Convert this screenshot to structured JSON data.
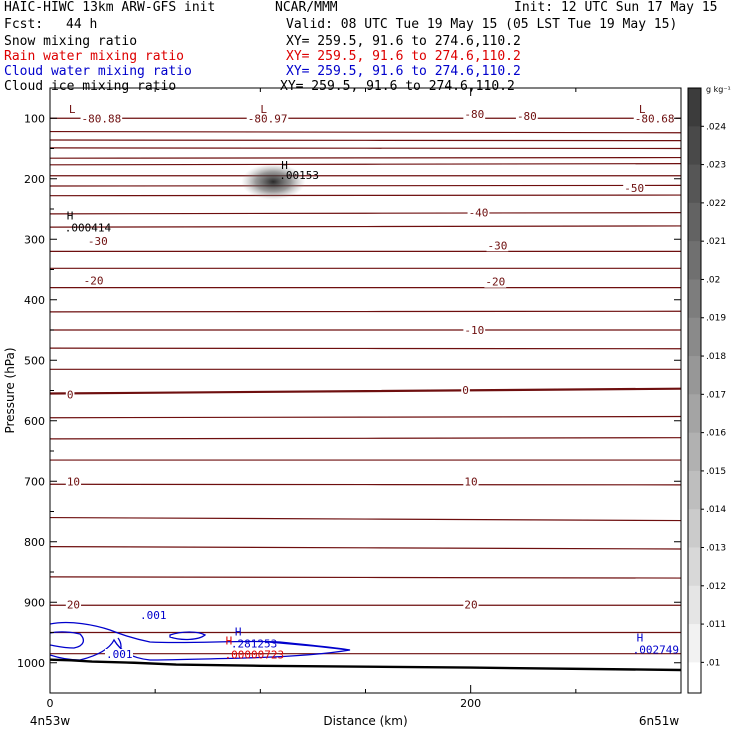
{
  "header": {
    "title_left": "HAIC-HIWC 13km ARW-GFS init",
    "org": "NCAR/MMM",
    "init": "Init: 12 UTC Sun 17 May 15",
    "fcst_label": "Fcst:",
    "fcst_value": "44 h",
    "valid": "Valid: 08 UTC Tue 19 May 15 (05 LST Tue 19 May 15)"
  },
  "legend": [
    {
      "name": "Snow mixing ratio",
      "xy": "XY= 259.5, 91.6 to 274.6,110.2",
      "color": "#000000"
    },
    {
      "name": "Rain water mixing ratio",
      "xy": "XY= 259.5, 91.6 to 274.6,110.2",
      "color": "#dd0000"
    },
    {
      "name": "Cloud water mixing ratio",
      "xy": "XY= 259.5, 91.6 to 274.6,110.2",
      "color": "#0000cc"
    },
    {
      "name": "Cloud ice mixing ratio",
      "xy": "XY= 259.5, 91.6 to 274.6,110.2",
      "color": "#000000"
    }
  ],
  "chart_data": {
    "type": "line",
    "xlabel": "Distance (km)",
    "ylabel": "Pressure (hPa)",
    "xlim": [
      0,
      300
    ],
    "ylim": [
      1050,
      50
    ],
    "x_ticks": [
      0,
      200
    ],
    "x_minor_ticks": [
      50,
      100,
      150,
      250
    ],
    "y_ticks": [
      100,
      200,
      300,
      400,
      500,
      600,
      700,
      800,
      900,
      1000
    ],
    "x_end_labels": {
      "left": "4n53w",
      "right": "6n51w"
    },
    "colorbar": {
      "unit": "g kg⁻¹",
      "ticks": [
        ".024",
        ".023",
        ".022",
        ".021",
        ".02",
        ".019",
        ".018",
        ".017",
        ".016",
        ".015",
        ".014",
        ".013",
        ".012",
        ".011",
        ".01"
      ]
    },
    "temperature_contours": {
      "color": "#6e0f0f",
      "levels": [
        {
          "p": 100,
          "ends": [
            100,
            100
          ]
        },
        {
          "p": 123,
          "ends": [
            122,
            124
          ]
        },
        {
          "p": 137,
          "ends": [
            136,
            137
          ]
        },
        {
          "p": 150,
          "ends": [
            149,
            150
          ]
        },
        {
          "p": 166,
          "ends": [
            166,
            165
          ]
        },
        {
          "p": 177,
          "ends": [
            177,
            175
          ]
        },
        {
          "p": 195,
          "ends": [
            195,
            195
          ]
        },
        {
          "p": 212,
          "ends": [
            212,
            211
          ]
        },
        {
          "p": 228,
          "ends": [
            228,
            227
          ]
        },
        {
          "p": 258,
          "ends": [
            258,
            256
          ]
        },
        {
          "p": 280,
          "ends": [
            280,
            278
          ]
        },
        {
          "p": 320,
          "ends": [
            320,
            320
          ]
        },
        {
          "p": 348,
          "ends": [
            348,
            348
          ]
        },
        {
          "p": 380,
          "ends": [
            380,
            380
          ]
        },
        {
          "p": 420,
          "ends": [
            420,
            419
          ]
        },
        {
          "p": 450,
          "ends": [
            450,
            450
          ]
        },
        {
          "p": 480,
          "ends": [
            480,
            481
          ]
        },
        {
          "p": 515,
          "ends": [
            515,
            515
          ]
        },
        {
          "p": 555,
          "ends": [
            555,
            547
          ],
          "bold": true
        },
        {
          "p": 595,
          "ends": [
            595,
            593
          ]
        },
        {
          "p": 630,
          "ends": [
            630,
            628
          ]
        },
        {
          "p": 665,
          "ends": [
            665,
            665
          ]
        },
        {
          "p": 705,
          "ends": [
            705,
            706
          ]
        },
        {
          "p": 762,
          "ends": [
            760,
            765
          ]
        },
        {
          "p": 808,
          "ends": [
            808,
            812
          ]
        },
        {
          "p": 858,
          "ends": [
            858,
            860
          ]
        },
        {
          "p": 905,
          "ends": [
            905,
            905
          ]
        },
        {
          "p": 950,
          "ends": [
            950,
            950
          ]
        },
        {
          "p": 985,
          "ends": [
            985,
            985
          ]
        }
      ],
      "labels": [
        {
          "text": "-80.88",
          "x": 15,
          "p": 100
        },
        {
          "text": "-80.97",
          "x": 94,
          "p": 100
        },
        {
          "text": "-80",
          "x": 197,
          "p": 93
        },
        {
          "text": "-80",
          "x": 222,
          "p": 96
        },
        {
          "text": "-80.68",
          "x": 278,
          "p": 100
        },
        {
          "text": "-50",
          "x": 273,
          "p": 215
        },
        {
          "text": "-40",
          "x": 199,
          "p": 256
        },
        {
          "text": "-30",
          "x": 208,
          "p": 310
        },
        {
          "text": "-30",
          "x": 18,
          "p": 303
        },
        {
          "text": "-20",
          "x": 16,
          "p": 368
        },
        {
          "text": "-20",
          "x": 207,
          "p": 370
        },
        {
          "text": "-10",
          "x": 197,
          "p": 450
        },
        {
          "text": "0",
          "x": 8,
          "p": 557
        },
        {
          "text": "0",
          "x": 196,
          "p": 549
        },
        {
          "text": "10",
          "x": 8,
          "p": 700
        },
        {
          "text": "10",
          "x": 197,
          "p": 700
        },
        {
          "text": "20",
          "x": 8,
          "p": 904
        },
        {
          "text": "20",
          "x": 197,
          "p": 904
        }
      ],
      "lows": [
        {
          "x": 9,
          "p": 85
        },
        {
          "x": 100,
          "p": 85
        },
        {
          "x": 280,
          "p": 85
        }
      ]
    },
    "cloud_ice_max": {
      "label": "H",
      "value": ".00153",
      "x": 109,
      "p": 200
    },
    "cloud_ice_max_2": {
      "label": "H",
      "value": ".000414",
      "x": 7,
      "p": 284
    },
    "cloud_water_contours": {
      "levels": [
        ".001",
        ".001"
      ],
      "maxima": [
        {
          "label": "H",
          "value": ".281253",
          "x": 86,
          "p": 975
        },
        {
          "label": "H",
          "value": ".002749",
          "x": 277,
          "p": 985
        }
      ]
    },
    "rain_max": {
      "label": "H",
      "value": ".00000723",
      "x": 83,
      "p": 990
    },
    "terrain": {
      "x": [
        0,
        10,
        20,
        40,
        60,
        100,
        200,
        300
      ],
      "p": [
        995,
        996,
        998,
        1000,
        1003,
        1005,
        1008,
        1012
      ]
    }
  }
}
